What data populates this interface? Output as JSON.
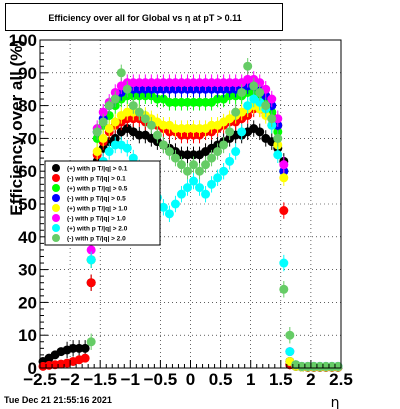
{
  "chart_data": {
    "type": "scatter",
    "title": "Efficiency over all for Global vs   η at pT > 0.11",
    "xlabel": "η",
    "ylabel": "Efficiency over all (%)",
    "xlim": [
      -2.5,
      2.5
    ],
    "ylim": [
      0,
      100
    ],
    "x_ticks": [
      "−2.5",
      "−2",
      "−1.5",
      "−1",
      "−0.5",
      "0",
      "0.5",
      "1",
      "1.5",
      "2",
      "2.5"
    ],
    "y_ticks": [
      "0",
      "10",
      "20",
      "30",
      "40",
      "50",
      "60",
      "70",
      "80",
      "90",
      "100"
    ],
    "grid": true,
    "legend_position": "left-middle",
    "series": [
      {
        "name": "(+) with p_{T}/|q| > 0.1",
        "legend_label": "(+) with p T/|q| > 0.1",
        "color": "#000000"
      },
      {
        "name": "(-) with p_{T}/|q| > 0.1",
        "legend_label": "(-) with p T/|q| > 0.1",
        "color": "#ff0000"
      },
      {
        "name": "(+) with p_{T}/|q| > 0.5",
        "legend_label": "(+) with p T/|q| > 0.5",
        "color": "#00ff00"
      },
      {
        "name": "(-) with p_{T}/|q| > 0.5",
        "legend_label": "(-) with p T/|q| > 0.5",
        "color": "#0000ff"
      },
      {
        "name": "(+) with p_{T}/|q| > 1.0",
        "legend_label": "(+) with p T/|q| > 1.0",
        "color": "#ffff00"
      },
      {
        "name": "(-) with p_{T}/|q| > 1.0",
        "legend_label": "(-) with p T/|q| > 1.0",
        "color": "#ff00ff"
      },
      {
        "name": "(+) with p_{T}/|q| > 2.0",
        "legend_label": "(+) with p T/|q| > 2.0",
        "color": "#00ffff"
      },
      {
        "name": "(-) with p_{T}/|q| > 2.0",
        "legend_label": "(-) with p T/|q| > 2.0",
        "color": "#66cc66"
      }
    ],
    "curves": {
      "note_points": "eta,efficiency pairs read from plot",
      "black": [
        [
          -2.45,
          2
        ],
        [
          -2.35,
          3
        ],
        [
          -2.25,
          4
        ],
        [
          -2.15,
          5
        ],
        [
          -2.05,
          5.5
        ],
        [
          -1.95,
          6
        ],
        [
          -1.85,
          6
        ],
        [
          -1.75,
          6
        ],
        [
          -1.65,
          26
        ],
        [
          -1.55,
          63
        ],
        [
          -1.45,
          67
        ],
        [
          -1.35,
          69
        ],
        [
          -1.25,
          70
        ],
        [
          -1.15,
          72
        ],
        [
          -1.05,
          73
        ],
        [
          -0.95,
          72
        ],
        [
          -0.85,
          71
        ],
        [
          -0.75,
          71
        ],
        [
          -0.65,
          70
        ],
        [
          -0.55,
          69
        ],
        [
          -0.45,
          68
        ],
        [
          -0.35,
          67
        ],
        [
          -0.25,
          66
        ],
        [
          -0.15,
          65
        ],
        [
          -0.05,
          65
        ],
        [
          0.05,
          65
        ],
        [
          0.15,
          65
        ],
        [
          0.25,
          66
        ],
        [
          0.35,
          67
        ],
        [
          0.45,
          68
        ],
        [
          0.55,
          69
        ],
        [
          0.65,
          70
        ],
        [
          0.75,
          71
        ],
        [
          0.85,
          71
        ],
        [
          0.95,
          72
        ],
        [
          1.05,
          73
        ],
        [
          1.15,
          72
        ],
        [
          1.25,
          70
        ],
        [
          1.35,
          69
        ],
        [
          1.45,
          67
        ],
        [
          1.55,
          63
        ],
        [
          1.65,
          1
        ],
        [
          1.75,
          0.5
        ],
        [
          1.85,
          0.3
        ],
        [
          1.95,
          0.2
        ],
        [
          2.05,
          0.2
        ],
        [
          2.15,
          0.2
        ],
        [
          2.25,
          0.2
        ],
        [
          2.35,
          0.2
        ],
        [
          2.45,
          0.2
        ]
      ],
      "red": [
        [
          -2.45,
          0.5
        ],
        [
          -2.35,
          0.8
        ],
        [
          -2.25,
          1
        ],
        [
          -2.15,
          1.2
        ],
        [
          -2.05,
          1.5
        ],
        [
          -1.95,
          2
        ],
        [
          -1.85,
          2.5
        ],
        [
          -1.75,
          3
        ],
        [
          -1.65,
          26
        ],
        [
          -1.55,
          65
        ],
        [
          -1.45,
          69
        ],
        [
          -1.35,
          72
        ],
        [
          -1.25,
          74
        ],
        [
          -1.15,
          75
        ],
        [
          -1.05,
          76
        ],
        [
          -0.95,
          76
        ],
        [
          -0.85,
          76
        ],
        [
          -0.75,
          75
        ],
        [
          -0.65,
          75
        ],
        [
          -0.55,
          74
        ],
        [
          -0.45,
          73
        ],
        [
          -0.35,
          72
        ],
        [
          -0.25,
          72
        ],
        [
          -0.15,
          71
        ],
        [
          -0.05,
          71
        ],
        [
          0.05,
          71
        ],
        [
          0.15,
          71
        ],
        [
          0.25,
          72
        ],
        [
          0.35,
          72
        ],
        [
          0.45,
          73
        ],
        [
          0.55,
          74
        ],
        [
          0.65,
          75
        ],
        [
          0.75,
          75
        ],
        [
          0.85,
          76
        ],
        [
          0.95,
          77
        ],
        [
          1.05,
          79
        ],
        [
          1.15,
          79
        ],
        [
          1.25,
          78
        ],
        [
          1.35,
          77
        ],
        [
          1.45,
          74
        ],
        [
          1.55,
          48
        ],
        [
          1.65,
          1
        ],
        [
          1.75,
          0.5
        ],
        [
          1.85,
          0.3
        ],
        [
          1.95,
          0.2
        ],
        [
          2.05,
          0.2
        ],
        [
          2.15,
          0.2
        ],
        [
          2.25,
          0.2
        ],
        [
          2.35,
          0.2
        ],
        [
          2.45,
          0.2
        ]
      ],
      "green": [
        [
          -1.65,
          33
        ],
        [
          -1.55,
          70
        ],
        [
          -1.45,
          74
        ],
        [
          -1.35,
          77
        ],
        [
          -1.25,
          80
        ],
        [
          -1.15,
          82
        ],
        [
          -1.05,
          83
        ],
        [
          -0.95,
          83
        ],
        [
          -0.85,
          83
        ],
        [
          -0.75,
          83
        ],
        [
          -0.65,
          83
        ],
        [
          -0.55,
          82
        ],
        [
          -0.45,
          82
        ],
        [
          -0.35,
          81
        ],
        [
          -0.25,
          81
        ],
        [
          -0.15,
          81
        ],
        [
          -0.05,
          81
        ],
        [
          0.05,
          81
        ],
        [
          0.15,
          81
        ],
        [
          0.25,
          81
        ],
        [
          0.35,
          81
        ],
        [
          0.45,
          82
        ],
        [
          0.55,
          82
        ],
        [
          0.65,
          83
        ],
        [
          0.75,
          83
        ],
        [
          0.85,
          83
        ],
        [
          0.95,
          84
        ],
        [
          1.05,
          84
        ],
        [
          1.15,
          83
        ],
        [
          1.25,
          81
        ],
        [
          1.35,
          78
        ],
        [
          1.45,
          72
        ],
        [
          1.55,
          60
        ],
        [
          1.65,
          2
        ],
        [
          1.75,
          0.5
        ],
        [
          1.85,
          0.3
        ],
        [
          1.95,
          0.3
        ],
        [
          2.05,
          0.3
        ],
        [
          2.15,
          0.3
        ],
        [
          2.25,
          0.3
        ],
        [
          2.35,
          0.3
        ],
        [
          2.45,
          0.3
        ]
      ],
      "blue": [
        [
          -1.65,
          33
        ],
        [
          -1.55,
          72
        ],
        [
          -1.45,
          76
        ],
        [
          -1.35,
          80
        ],
        [
          -1.25,
          82
        ],
        [
          -1.15,
          84
        ],
        [
          -1.05,
          85
        ],
        [
          -0.95,
          85
        ],
        [
          -0.85,
          85
        ],
        [
          -0.75,
          85
        ],
        [
          -0.65,
          85
        ],
        [
          -0.55,
          85
        ],
        [
          -0.45,
          85
        ],
        [
          -0.35,
          85
        ],
        [
          -0.25,
          85
        ],
        [
          -0.15,
          85
        ],
        [
          -0.05,
          85
        ],
        [
          0.05,
          85
        ],
        [
          0.15,
          85
        ],
        [
          0.25,
          85
        ],
        [
          0.35,
          85
        ],
        [
          0.45,
          85
        ],
        [
          0.55,
          85
        ],
        [
          0.65,
          85
        ],
        [
          0.75,
          85
        ],
        [
          0.85,
          86
        ],
        [
          0.95,
          86
        ],
        [
          1.05,
          86
        ],
        [
          1.15,
          85
        ],
        [
          1.25,
          83
        ],
        [
          1.35,
          80
        ],
        [
          1.45,
          74
        ],
        [
          1.55,
          60
        ],
        [
          1.65,
          2
        ],
        [
          1.75,
          0.5
        ],
        [
          1.85,
          0.3
        ],
        [
          1.95,
          0.3
        ],
        [
          2.05,
          0.3
        ],
        [
          2.15,
          0.3
        ],
        [
          2.25,
          0.3
        ],
        [
          2.35,
          0.3
        ],
        [
          2.45,
          0.3
        ]
      ],
      "yellow": [
        [
          -1.65,
          33
        ],
        [
          -1.55,
          66
        ],
        [
          -1.45,
          70
        ],
        [
          -1.35,
          73
        ],
        [
          -1.25,
          75
        ],
        [
          -1.15,
          77
        ],
        [
          -1.05,
          78
        ],
        [
          -0.95,
          78
        ],
        [
          -0.85,
          78
        ],
        [
          -0.75,
          77
        ],
        [
          -0.65,
          76
        ],
        [
          -0.55,
          75
        ],
        [
          -0.45,
          74
        ],
        [
          -0.35,
          74
        ],
        [
          -0.25,
          73
        ],
        [
          -0.15,
          73
        ],
        [
          -0.05,
          73
        ],
        [
          0.05,
          73
        ],
        [
          0.15,
          73
        ],
        [
          0.25,
          73
        ],
        [
          0.35,
          74
        ],
        [
          0.45,
          74
        ],
        [
          0.55,
          75
        ],
        [
          0.65,
          76
        ],
        [
          0.75,
          77
        ],
        [
          0.85,
          78
        ],
        [
          0.95,
          79
        ],
        [
          1.05,
          80
        ],
        [
          1.15,
          79
        ],
        [
          1.25,
          77
        ],
        [
          1.35,
          74
        ],
        [
          1.45,
          68
        ],
        [
          1.55,
          58
        ],
        [
          1.65,
          2
        ],
        [
          1.75,
          0.5
        ],
        [
          1.85,
          0.3
        ],
        [
          1.95,
          0.3
        ],
        [
          2.05,
          0.3
        ],
        [
          2.15,
          0.3
        ],
        [
          2.25,
          0.3
        ],
        [
          2.35,
          0.3
        ],
        [
          2.45,
          0.3
        ]
      ],
      "magenta": [
        [
          -1.65,
          36
        ],
        [
          -1.55,
          73
        ],
        [
          -1.45,
          78
        ],
        [
          -1.35,
          81
        ],
        [
          -1.25,
          84
        ],
        [
          -1.15,
          86
        ],
        [
          -1.05,
          87
        ],
        [
          -0.95,
          87
        ],
        [
          -0.85,
          87
        ],
        [
          -0.75,
          87
        ],
        [
          -0.65,
          87
        ],
        [
          -0.55,
          87
        ],
        [
          -0.45,
          87
        ],
        [
          -0.35,
          87
        ],
        [
          -0.25,
          87
        ],
        [
          -0.15,
          87
        ],
        [
          -0.05,
          87
        ],
        [
          0.05,
          87
        ],
        [
          0.15,
          87
        ],
        [
          0.25,
          87
        ],
        [
          0.35,
          87
        ],
        [
          0.45,
          87
        ],
        [
          0.55,
          87
        ],
        [
          0.65,
          87
        ],
        [
          0.75,
          87
        ],
        [
          0.85,
          87
        ],
        [
          0.95,
          88
        ],
        [
          1.05,
          88
        ],
        [
          1.15,
          87
        ],
        [
          1.25,
          85
        ],
        [
          1.35,
          82
        ],
        [
          1.45,
          76
        ],
        [
          1.55,
          62
        ],
        [
          1.65,
          5
        ],
        [
          1.75,
          1
        ],
        [
          1.85,
          0.5
        ],
        [
          1.95,
          0.5
        ],
        [
          2.05,
          0.5
        ],
        [
          2.15,
          0.5
        ],
        [
          2.25,
          0.5
        ],
        [
          2.35,
          0.5
        ],
        [
          2.45,
          0.5
        ]
      ],
      "cyan": [
        [
          -1.65,
          33
        ],
        [
          -1.55,
          58
        ],
        [
          -1.45,
          63
        ],
        [
          -1.35,
          66
        ],
        [
          -1.25,
          68
        ],
        [
          -1.15,
          68
        ],
        [
          -1.05,
          67
        ],
        [
          -0.95,
          64
        ],
        [
          -0.85,
          61
        ],
        [
          -0.75,
          58
        ],
        [
          -0.65,
          55
        ],
        [
          -0.55,
          52
        ],
        [
          -0.45,
          49
        ],
        [
          -0.35,
          47
        ],
        [
          -0.25,
          50
        ],
        [
          -0.15,
          53
        ],
        [
          -0.05,
          55
        ],
        [
          0.05,
          57
        ],
        [
          0.15,
          55
        ],
        [
          0.25,
          53
        ],
        [
          0.35,
          56
        ],
        [
          0.45,
          58
        ],
        [
          0.55,
          60
        ],
        [
          0.65,
          63
        ],
        [
          0.75,
          66
        ],
        [
          0.85,
          72
        ],
        [
          0.95,
          80
        ],
        [
          1.05,
          82
        ],
        [
          1.15,
          81
        ],
        [
          1.25,
          79
        ],
        [
          1.35,
          74
        ],
        [
          1.45,
          65
        ],
        [
          1.55,
          32
        ],
        [
          1.65,
          5
        ],
        [
          1.75,
          1
        ],
        [
          1.85,
          0.5
        ],
        [
          1.95,
          0.5
        ],
        [
          2.05,
          0.5
        ],
        [
          2.15,
          0.5
        ],
        [
          2.25,
          0.5
        ],
        [
          2.35,
          0.5
        ],
        [
          2.45,
          0.5
        ]
      ],
      "ltgreen": [
        [
          -1.65,
          8
        ],
        [
          -1.55,
          72
        ],
        [
          -1.45,
          75
        ],
        [
          -1.35,
          80
        ],
        [
          -1.25,
          82
        ],
        [
          -1.15,
          90
        ],
        [
          -1.05,
          85
        ],
        [
          -0.95,
          80
        ],
        [
          -0.85,
          78
        ],
        [
          -0.75,
          76
        ],
        [
          -0.65,
          74
        ],
        [
          -0.55,
          71
        ],
        [
          -0.45,
          68
        ],
        [
          -0.35,
          66
        ],
        [
          -0.25,
          64
        ],
        [
          -0.15,
          62
        ],
        [
          -0.05,
          60
        ],
        [
          0.05,
          62
        ],
        [
          0.15,
          60
        ],
        [
          0.25,
          62
        ],
        [
          0.35,
          64
        ],
        [
          0.45,
          66
        ],
        [
          0.55,
          68
        ],
        [
          0.65,
          72
        ],
        [
          0.75,
          78
        ],
        [
          0.85,
          84
        ],
        [
          0.95,
          92
        ],
        [
          1.05,
          86
        ],
        [
          1.15,
          84
        ],
        [
          1.25,
          80
        ],
        [
          1.35,
          76
        ],
        [
          1.45,
          70
        ],
        [
          1.55,
          24
        ],
        [
          1.65,
          10
        ],
        [
          1.75,
          1
        ],
        [
          1.85,
          0.5
        ],
        [
          1.95,
          0.5
        ],
        [
          2.05,
          0.5
        ],
        [
          2.15,
          0.5
        ],
        [
          2.25,
          0.5
        ],
        [
          2.35,
          0.5
        ],
        [
          2.45,
          0.5
        ]
      ]
    }
  },
  "timestamp": "Tue Dec 21 21:55:16 2021"
}
